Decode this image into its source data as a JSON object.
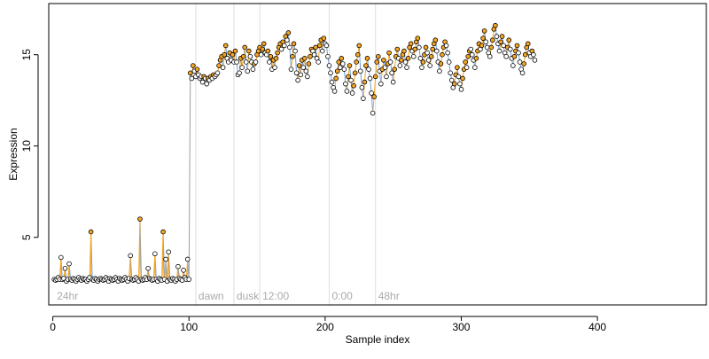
{
  "chart_data": {
    "type": "scatter",
    "title": "",
    "xlabel": "Sample index",
    "ylabel": "Expression",
    "xlim": [
      -3,
      480
    ],
    "ylim": [
      1.3,
      17.8
    ],
    "xticks": [
      0,
      100,
      200,
      300,
      400
    ],
    "yticks": [
      5,
      10,
      15
    ],
    "grid": false,
    "legend": "none",
    "colors": {
      "point_fill": "#ffffff",
      "point_stroke": "#000000",
      "highlight_fill": "#f5a623",
      "line_up": "#f5a623",
      "line_down": "#6f9ee0",
      "step_line": "#9e9e9e",
      "marker_line": "#dddddd",
      "marker_text": "#aaaaaa"
    },
    "phase_markers": [
      {
        "x": 105,
        "label": "dawn"
      },
      {
        "x": 133,
        "label": "dusk"
      },
      {
        "x": 152,
        "label": "12:00"
      },
      {
        "x": 203,
        "label": "0:00"
      },
      {
        "x": 237,
        "label": "48hr"
      }
    ],
    "annotations": [
      {
        "x": 3,
        "text": "24hr"
      }
    ],
    "series": [
      {
        "x_start": 1,
        "values": [
          2.7,
          2.65,
          2.7,
          2.8,
          2.7,
          3.9,
          2.7,
          2.75,
          3.3,
          2.6,
          2.7,
          3.55,
          2.7,
          2.65,
          2.75,
          2.7,
          2.6,
          2.7,
          2.8,
          2.7,
          2.65,
          2.75,
          2.7,
          2.7,
          2.6,
          2.7,
          2.8,
          5.3,
          2.7,
          2.65,
          2.75,
          2.7,
          2.6,
          2.7,
          2.75,
          2.7,
          2.65,
          2.7,
          2.8,
          2.7,
          2.6,
          2.75,
          2.7,
          2.65,
          2.7,
          2.8,
          2.7,
          2.6,
          2.75,
          2.7,
          2.65,
          2.7,
          2.8,
          2.7,
          2.6,
          2.75,
          4.0,
          2.7,
          2.65,
          2.7,
          2.8,
          2.7,
          2.6,
          6.0,
          2.7,
          2.65,
          2.7,
          2.8,
          2.7,
          3.3,
          2.75,
          2.7,
          2.65,
          2.7,
          4.1,
          2.7,
          2.6,
          2.75,
          2.7,
          2.65,
          5.3,
          2.7,
          3.8,
          2.6,
          4.2,
          2.7,
          2.65,
          2.75,
          2.7,
          2.6,
          2.7,
          3.4,
          2.75,
          2.7,
          2.65,
          3.2,
          2.8,
          2.7,
          3.8,
          2.7,
          14.0,
          13.7,
          14.4,
          14.1,
          13.8,
          14.2,
          13.9,
          13.7,
          13.8,
          13.5,
          13.8,
          13.7,
          13.4,
          13.7,
          13.6,
          13.8,
          13.7,
          13.9,
          13.8,
          13.9,
          14.0,
          14.4,
          14.7,
          14.9,
          14.3,
          15.0,
          15.5,
          14.8,
          14.6,
          15.1,
          14.7,
          15.0,
          14.6,
          15.2,
          14.6,
          13.9,
          14.0,
          14.8,
          14.3,
          14.9,
          15.4,
          14.6,
          14.1,
          15.2,
          14.9,
          14.6,
          14.2,
          14.5,
          14.6,
          15.0,
          15.2,
          15.4,
          15.0,
          15.3,
          15.6,
          15.1,
          15.0,
          15.2,
          14.6,
          14.9,
          14.2,
          14.7,
          14.3,
          14.8,
          15.1,
          15.4,
          15.6,
          15.3,
          15.7,
          15.5,
          16.0,
          15.8,
          16.2,
          15.4,
          14.2,
          14.9,
          15.6,
          15.2,
          14.0,
          13.6,
          14.4,
          13.9,
          14.7,
          14.3,
          14.8,
          14.1,
          13.8,
          14.5,
          14.9,
          15.3,
          15.2,
          15.0,
          15.4,
          14.8,
          14.6,
          15.5,
          15.8,
          15.2,
          15.9,
          15.6,
          15.5,
          14.9,
          14.4,
          14.0,
          13.5,
          13.2,
          13.0,
          13.7,
          14.1,
          14.6,
          14.3,
          14.8,
          14.5,
          14.2,
          13.4,
          13.0,
          13.8,
          14.4,
          13.6,
          12.9,
          13.3,
          14.0,
          14.6,
          15.0,
          15.5,
          14.1,
          13.2,
          12.6,
          13.5,
          14.4,
          14.8,
          14.2,
          13.7,
          12.9,
          11.8,
          12.7,
          13.8,
          14.6,
          14.9,
          14.1,
          13.4,
          14.2,
          14.7,
          14.3,
          13.8,
          14.5,
          15.1,
          14.6,
          14.0,
          13.5,
          14.2,
          14.9,
          15.3,
          14.8,
          14.4,
          14.7,
          15.0,
          15.2,
          14.6,
          14.3,
          14.8,
          15.4,
          15.6,
          15.2,
          14.9,
          15.3,
          15.7,
          15.9,
          15.4,
          14.8,
          14.3,
          14.6,
          15.0,
          15.4,
          15.1,
          14.7,
          14.4,
          14.9,
          15.3,
          15.6,
          15.8,
          15.2,
          14.6,
          14.1,
          14.5,
          15.0,
          15.4,
          15.7,
          15.5,
          15.1,
          14.6,
          14.0,
          13.6,
          13.2,
          13.4,
          13.9,
          14.3,
          13.8,
          13.4,
          13.1,
          13.7,
          14.2,
          14.6,
          14.3,
          14.9,
          15.2,
          15.3,
          15.0,
          14.7,
          14.3,
          14.8,
          15.2,
          15.6,
          15.3,
          15.5,
          15.9,
          16.3,
          15.7,
          15.4,
          15.1,
          14.9,
          15.4,
          15.8,
          16.4,
          16.6,
          16.0,
          15.6,
          15.2,
          15.7,
          16.0,
          15.5,
          15.1,
          14.9,
          15.4,
          15.8,
          15.3,
          14.8,
          14.4,
          14.9,
          15.2,
          15.5,
          15.1,
          14.6,
          14.2,
          14.0,
          14.5,
          15.0,
          15.4,
          15.6,
          15.1,
          14.9,
          15.2,
          15.0,
          14.7
        ]
      }
    ]
  }
}
